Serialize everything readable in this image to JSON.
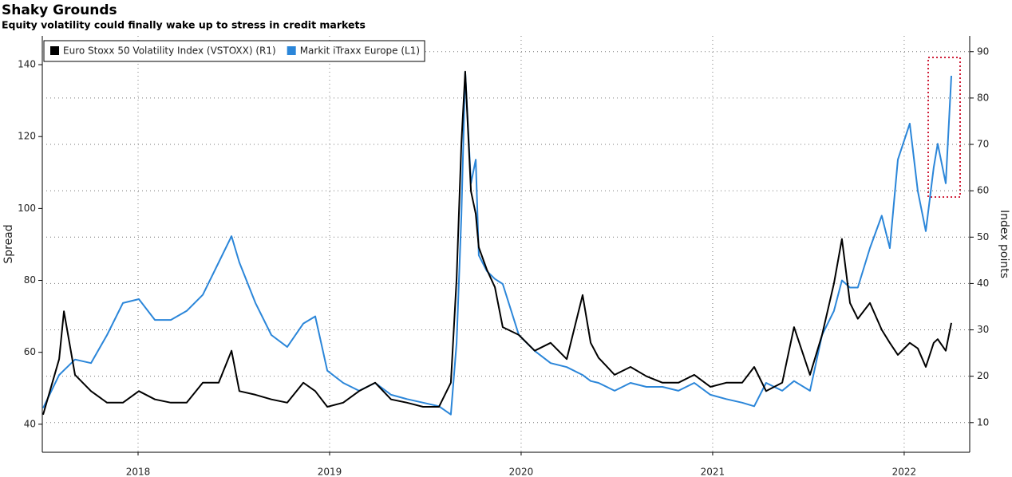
{
  "chart_data": {
    "type": "line",
    "title": "Shaky Grounds",
    "subtitle": "Equity volatility could finally wake up to stress in credit markets",
    "y_label": "Spread",
    "y2_label": "Index points",
    "xlim": [
      2018,
      2022.842
    ],
    "xticks": [
      {
        "value": 2018.5,
        "label": "2018"
      },
      {
        "value": 2019.5,
        "label": "2019"
      },
      {
        "value": 2020.5,
        "label": "2020"
      },
      {
        "value": 2021.5,
        "label": "2021"
      },
      {
        "value": 2022.5,
        "label": "2022"
      }
    ],
    "ylim": [
      32.2,
      148
    ],
    "yticks": [
      40,
      60,
      80,
      100,
      120,
      140
    ],
    "y2lim": [
      3.6,
      93.4
    ],
    "y2ticks": [
      10,
      20,
      30,
      40,
      50,
      60,
      70,
      80,
      90
    ],
    "grid": true,
    "legend": "top-left",
    "x": [
      2018.004,
      2018.088,
      2018.113,
      2018.171,
      2018.254,
      2018.338,
      2018.421,
      2018.504,
      2018.588,
      2018.671,
      2018.754,
      2018.838,
      2018.921,
      2018.988,
      2019.029,
      2019.113,
      2019.196,
      2019.279,
      2019.363,
      2019.425,
      2019.488,
      2019.571,
      2019.654,
      2019.738,
      2019.821,
      2019.904,
      2019.988,
      2020.071,
      2020.133,
      2020.163,
      2020.188,
      2020.208,
      2020.238,
      2020.263,
      2020.279,
      2020.321,
      2020.363,
      2020.404,
      2020.488,
      2020.571,
      2020.654,
      2020.738,
      2020.821,
      2020.863,
      2020.904,
      2020.988,
      2021.071,
      2021.154,
      2021.238,
      2021.321,
      2021.404,
      2021.488,
      2021.571,
      2021.654,
      2021.717,
      2021.779,
      2021.863,
      2021.925,
      2022.008,
      2022.071,
      2022.133,
      2022.175,
      2022.217,
      2022.258,
      2022.321,
      2022.383,
      2022.425,
      2022.467,
      2022.529,
      2022.571,
      2022.613,
      2022.654,
      2022.675,
      2022.717,
      2022.746
    ],
    "series": [
      {
        "name": "Euro Stoxx 50 Volatility Index (VSTOXX) (R1)",
        "color": "#000000",
        "axis": "y2",
        "values": [
          11.7,
          23.7,
          34,
          20.3,
          16.8,
          14.3,
          14.3,
          16.8,
          15,
          14.3,
          14.3,
          18.6,
          18.6,
          25.5,
          16.8,
          16,
          15,
          14.3,
          18.6,
          16.8,
          13.4,
          14.3,
          16.8,
          18.6,
          15,
          14.3,
          13.4,
          13.4,
          18.6,
          41,
          70.2,
          85.7,
          59.9,
          55,
          47.8,
          43,
          39.2,
          30.6,
          28.9,
          25.5,
          27.2,
          23.7,
          37.5,
          27.2,
          24,
          20.3,
          22,
          20,
          18.6,
          18.6,
          20.3,
          17.7,
          18.6,
          18.6,
          22,
          16.8,
          18.6,
          30.6,
          20.3,
          28.9,
          40,
          49.6,
          35.8,
          32.4,
          35.8,
          30,
          27.2,
          24.6,
          27.2,
          26,
          22,
          27.2,
          28,
          25.5,
          31.5
        ]
      },
      {
        "name": "Markit iTraxx Europe (L1)",
        "color": "#2b86d9",
        "values": [
          44.5,
          53.7,
          55,
          58,
          57,
          64.8,
          73.7,
          74.8,
          69,
          69,
          71.5,
          76,
          85,
          92.3,
          85,
          73.7,
          64.8,
          61.5,
          68,
          70,
          54.9,
          51.5,
          49.3,
          51.5,
          48.2,
          47,
          46,
          45,
          42.7,
          62.6,
          98,
          138,
          107,
          113.6,
          87,
          82.6,
          80.4,
          79,
          64.8,
          60.4,
          57,
          55.9,
          53.7,
          52,
          51.5,
          49.3,
          51.5,
          50.4,
          50.4,
          49.3,
          51.5,
          48.2,
          47,
          46,
          45,
          51.5,
          49.3,
          52,
          49.3,
          64.8,
          71.5,
          80,
          78,
          78,
          89,
          98,
          89,
          113.6,
          123.6,
          104.8,
          93.7,
          111.4,
          118,
          107,
          136.9
        ]
      }
    ]
  }
}
